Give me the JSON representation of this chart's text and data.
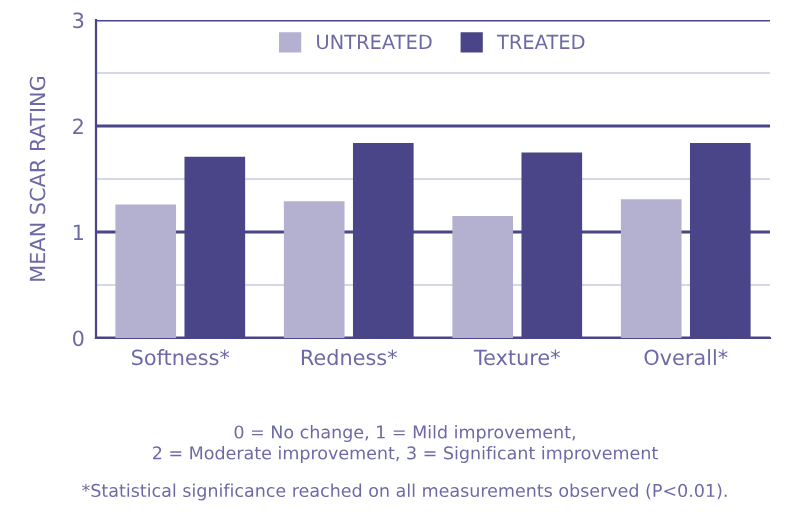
{
  "chart_data": {
    "type": "bar",
    "ylabel": "MEAN SCAR RATING",
    "categories": [
      "Softness*",
      "Redness*",
      "Texture*",
      "Overall*"
    ],
    "series": [
      {
        "name": "UNTREATED",
        "color": "#b4b0cf",
        "values": [
          1.26,
          1.29,
          1.15,
          1.31
        ]
      },
      {
        "name": "TREATED",
        "color": "#4a4588",
        "values": [
          1.71,
          1.84,
          1.75,
          1.84
        ]
      }
    ],
    "ylim": [
      0,
      3
    ],
    "yticks": [
      0,
      {
        "value": 0.5,
        "label": null
      },
      1,
      {
        "value": 1.5,
        "label": null
      },
      2,
      {
        "value": 2.5,
        "label": null
      },
      3
    ],
    "grid": "y",
    "legend": "top",
    "annotations": [
      "0 = No change, 1 = Mild improvement,\n2 = Moderate improvement, 3 = Significant improvement",
      "*Statistical significance reached on all measurements observed (P<0.01)."
    ]
  }
}
